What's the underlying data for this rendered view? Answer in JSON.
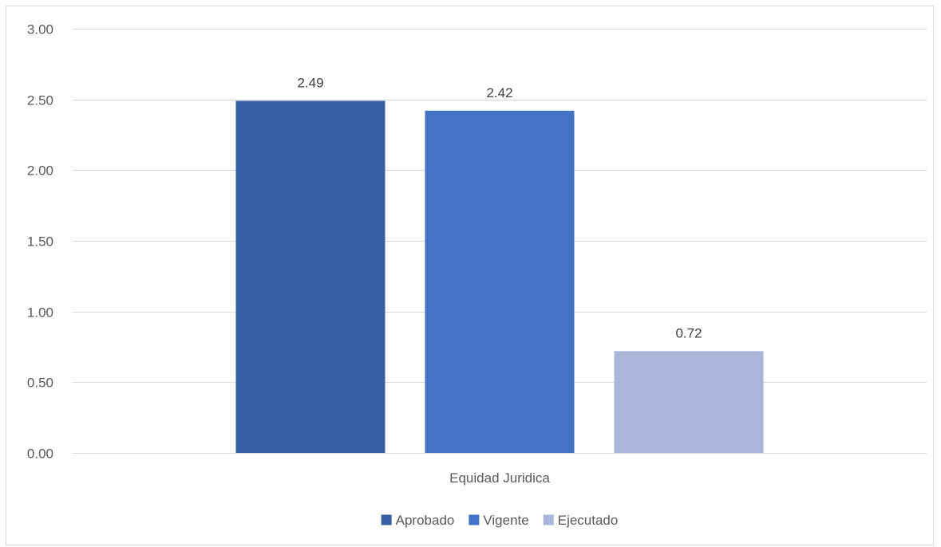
{
  "chart_data": {
    "type": "bar",
    "categories": [
      "Equidad Juridica"
    ],
    "series": [
      {
        "name": "Aprobado",
        "values": [
          2.49
        ],
        "color": "#365fa3",
        "data_label": "2.49"
      },
      {
        "name": "Vigente",
        "values": [
          2.42
        ],
        "color": "#4472c4",
        "data_label": "2.42"
      },
      {
        "name": "Ejecutado",
        "values": [
          0.72
        ],
        "color": "#a9b6da",
        "data_label": "0.72"
      }
    ],
    "ylim": [
      0,
      3
    ],
    "yticks": [
      0,
      0.5,
      1,
      1.5,
      2,
      2.5,
      3
    ],
    "ytick_labels": [
      "0.00",
      "0.50",
      "1.00",
      "1.50",
      "2.00",
      "2.50",
      "3.00"
    ],
    "grid": true,
    "gridline_color": "#d9d9d9",
    "legend_position": "bottom"
  }
}
